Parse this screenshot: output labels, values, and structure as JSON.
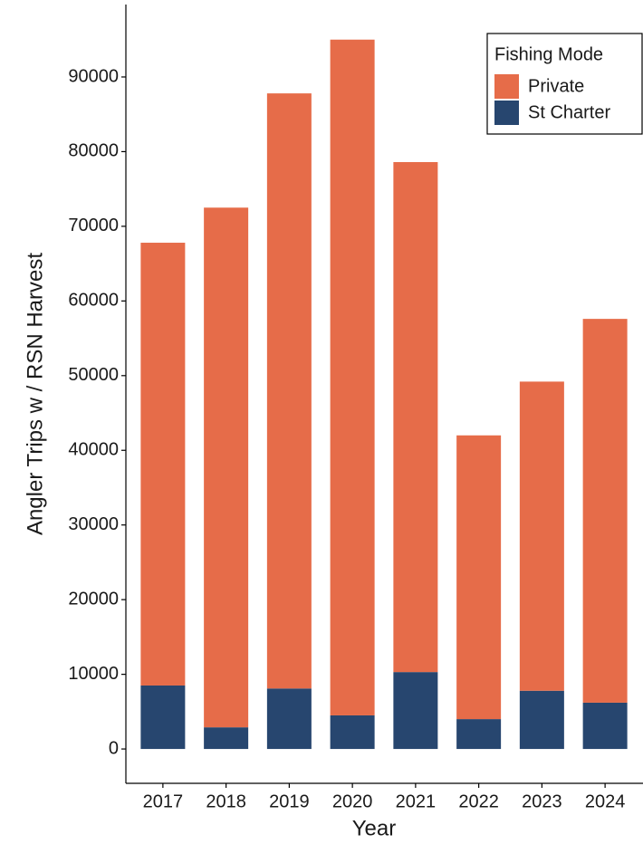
{
  "chart_data": {
    "type": "bar",
    "stacked": true,
    "x_label": "Year",
    "y_label": "Angler Trips w / RSN Harvest",
    "categories": [
      "2017",
      "2018",
      "2019",
      "2020",
      "2021",
      "2022",
      "2023",
      "2024"
    ],
    "series": [
      {
        "name": "Private",
        "color": "#e66c49",
        "values": [
          59300,
          69600,
          79700,
          90500,
          68300,
          38000,
          41400,
          51400
        ]
      },
      {
        "name": "St Charter",
        "color": "#27466f",
        "values": [
          8500,
          2900,
          8100,
          4500,
          10300,
          4000,
          7800,
          6200
        ]
      }
    ],
    "stack_order": [
      "St Charter",
      "Private"
    ],
    "legend_title": "Fishing Mode",
    "legend_position": "top-right",
    "ylim": [
      -4600,
      99700
    ],
    "yticks": [
      0,
      10000,
      20000,
      30000,
      40000,
      50000,
      60000,
      70000,
      80000,
      90000
    ],
    "grid": false
  }
}
